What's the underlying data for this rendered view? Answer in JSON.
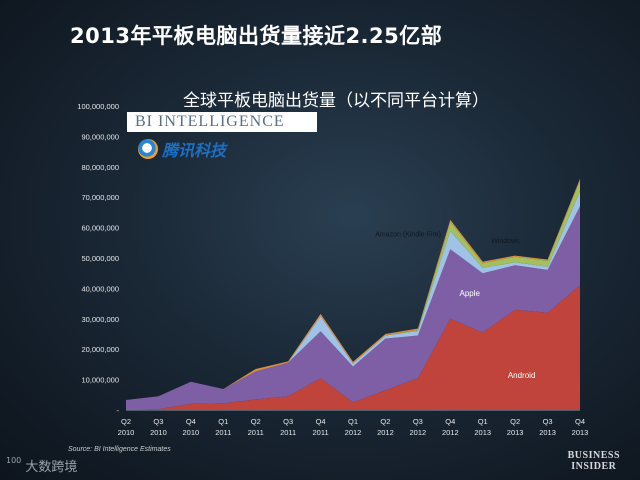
{
  "slide": {
    "title": "2013年平板电脑出货量接近2.25亿部",
    "source": "Source: BI Intelligence Estimates",
    "footer_left_sup": "100",
    "footer_left_text": "大数跨境",
    "footer_right_line1": "BUSINESS",
    "footer_right_line2": "INSIDER",
    "bi_logo_text": "BI INTELLIGENCE",
    "tencent_logo_text": "腾讯科技"
  },
  "chart_data": {
    "type": "area",
    "title": "全球平板电脑出货量（以不同平台计算）",
    "xlabel": "",
    "ylabel": "",
    "ylim": [
      0,
      100000000
    ],
    "yticks": [
      "-",
      "10,000,000",
      "20,000,000",
      "30,000,000",
      "40,000,000",
      "50,000,000",
      "60,000,000",
      "70,000,000",
      "80,000,000",
      "90,000,000",
      "100,000,000"
    ],
    "categories": [
      [
        "Q2",
        "2010"
      ],
      [
        "Q3",
        "2010"
      ],
      [
        "Q4",
        "2010"
      ],
      [
        "Q1",
        "2011"
      ],
      [
        "Q2",
        "2011"
      ],
      [
        "Q3",
        "2011"
      ],
      [
        "Q4",
        "2011"
      ],
      [
        "Q1",
        "2012"
      ],
      [
        "Q2",
        "2012"
      ],
      [
        "Q3",
        "2012"
      ],
      [
        "Q4",
        "2012"
      ],
      [
        "Q1",
        "2013"
      ],
      [
        "Q2",
        "2013"
      ],
      [
        "Q3",
        "2013"
      ],
      [
        "Q4",
        "2013"
      ]
    ],
    "stacked": true,
    "series": [
      {
        "name": "Android",
        "color": "#c0433c",
        "values": [
          0,
          300000,
          2000000,
          2200000,
          3500000,
          4500000,
          10500000,
          2500000,
          6500000,
          10500000,
          30000000,
          25500000,
          33000000,
          32000000,
          41000000
        ]
      },
      {
        "name": "Apple",
        "color": "#7e5fa6",
        "values": [
          3300000,
          4200000,
          7300000,
          4700000,
          9200000,
          11100000,
          15400000,
          11800000,
          17000000,
          14000000,
          22900000,
          19500000,
          14600000,
          14100000,
          26000000
        ]
      },
      {
        "name": "Amazon (Kindle Fire)",
        "color": "#9fc2e6",
        "values": [
          0,
          0,
          0,
          0,
          0,
          0,
          5000000,
          1000000,
          1000000,
          1500000,
          6000000,
          1800000,
          1000000,
          1000000,
          5000000
        ]
      },
      {
        "name": "Windows",
        "color": "#a3bf5e",
        "values": [
          0,
          0,
          0,
          0,
          0,
          0,
          0,
          0,
          0,
          300000,
          3000000,
          1500000,
          1800000,
          2000000,
          3500000
        ]
      },
      {
        "name": "",
        "color": "#d98f3f",
        "values": [
          0,
          0,
          0,
          0,
          800000,
          400000,
          700000,
          600000,
          500000,
          500000,
          700000,
          500000,
          400000,
          400000,
          600000
        ]
      }
    ],
    "series_labels": [
      "Android",
      "Apple",
      "Amazon (Kindle Fire)",
      "Windows"
    ],
    "grid": false,
    "legend": "inline labels"
  }
}
